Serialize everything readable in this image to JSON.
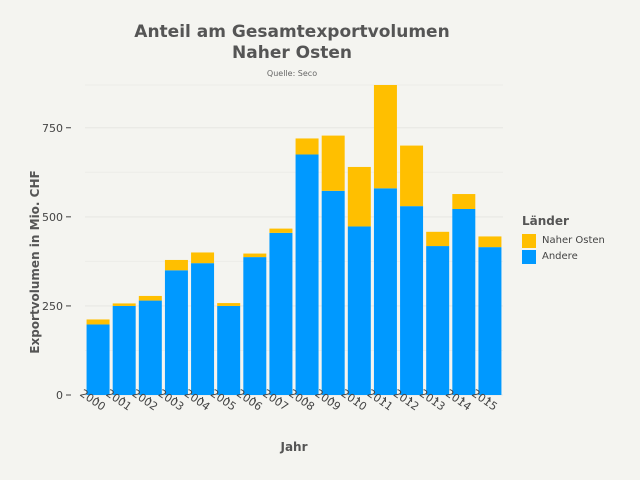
{
  "chart_data": {
    "type": "bar",
    "stacked": true,
    "title": "Anteil am Gesamtexportvolumen Naher Osten",
    "title_lines": [
      "Anteil am Gesamtexportvolumen",
      "Naher Osten"
    ],
    "subtitle": "Quelle: Seco",
    "xlabel": "Jahr",
    "ylabel": "Exportvolumen in Mio. CHF",
    "ylim": [
      0,
      870
    ],
    "yticks": [
      0,
      250,
      500,
      750
    ],
    "ytick_labels": [
      "0",
      "250",
      "500",
      "750"
    ],
    "categories": [
      "2000",
      "2001",
      "2002",
      "2003",
      "2004",
      "2005",
      "2006",
      "2007",
      "2008",
      "2009",
      "2010",
      "2011",
      "2012",
      "2013",
      "2014",
      "2015"
    ],
    "legend_title": "Länder",
    "legend_position": "right",
    "series": [
      {
        "name": "Andere",
        "color": "#0099ff",
        "values": [
          198,
          250,
          265,
          350,
          370,
          250,
          387,
          455,
          675,
          573,
          473,
          580,
          530,
          418,
          522,
          415
        ]
      },
      {
        "name": "Naher Osten",
        "color": "#ffbf00",
        "values": [
          14,
          7,
          13,
          29,
          30,
          8,
          10,
          12,
          45,
          155,
          167,
          290,
          170,
          40,
          42,
          30
        ]
      }
    ]
  }
}
